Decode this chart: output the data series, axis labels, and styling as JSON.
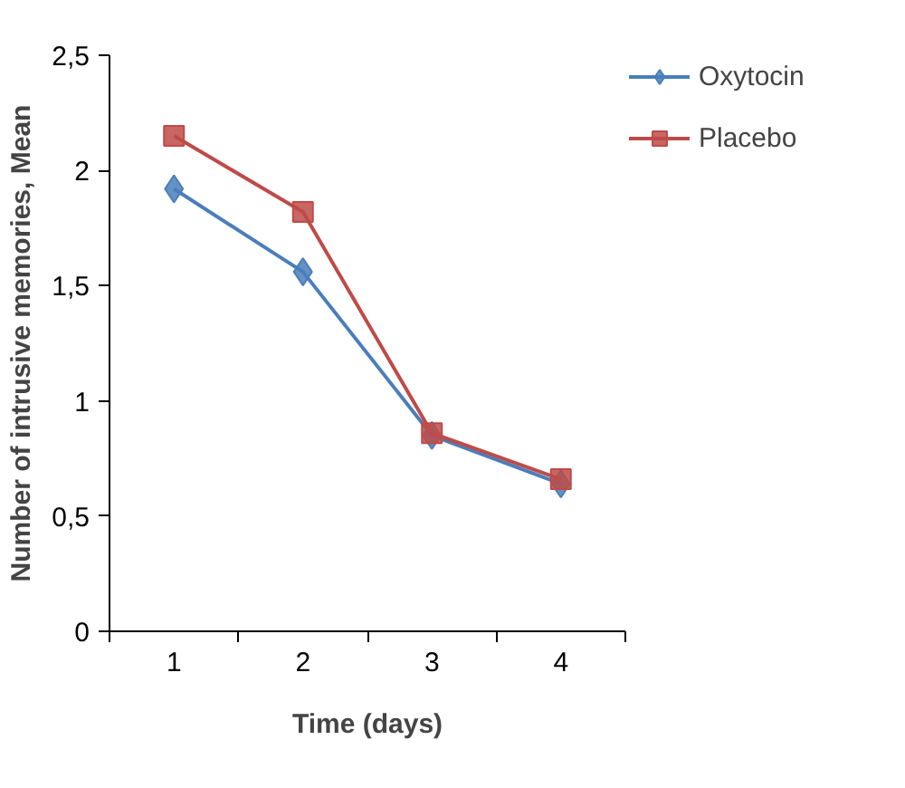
{
  "chart_data": {
    "type": "line",
    "xlabel": "Time (days)",
    "ylabel": "Number of intrusive memories, Mean",
    "categories": [
      "1",
      "2",
      "3",
      "4"
    ],
    "series": [
      {
        "name": "Oxytocin",
        "color": "#4a7ebb",
        "marker": "diamond",
        "values": [
          1.92,
          1.56,
          0.85,
          0.64
        ]
      },
      {
        "name": "Placebo",
        "color": "#be4b48",
        "marker": "square",
        "values": [
          2.15,
          1.82,
          0.86,
          0.66
        ]
      }
    ],
    "ylim": [
      0,
      2.5
    ],
    "yticks": [
      0,
      {
        "value": 0.5,
        "label": "0,5"
      },
      1,
      {
        "value": 1.5,
        "label": "1,5"
      },
      2,
      {
        "value": 2.5,
        "label": "2,5"
      }
    ],
    "legend": "top right",
    "line_style": "solid"
  }
}
